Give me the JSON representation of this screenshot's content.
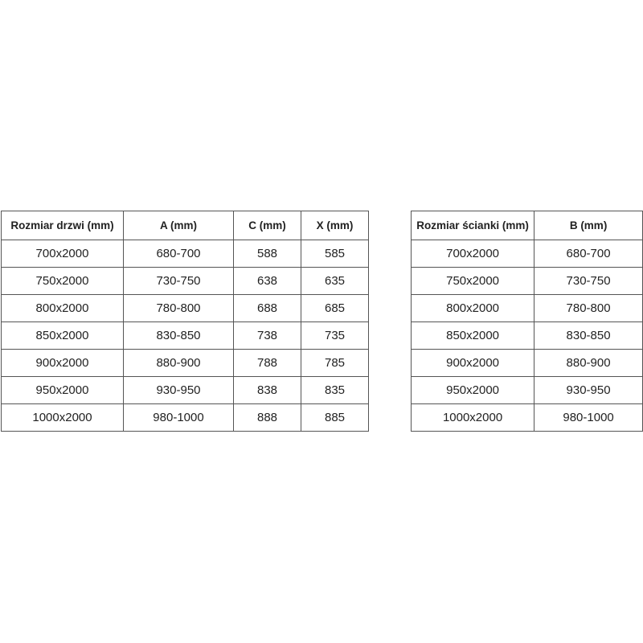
{
  "tables": [
    {
      "header": [
        "Rozmiar drzwi (mm)",
        "A (mm)",
        "C (mm)",
        "X (mm)"
      ],
      "rows": [
        [
          "700x2000",
          "680-700",
          "588",
          "585"
        ],
        [
          "750x2000",
          "730-750",
          "638",
          "635"
        ],
        [
          "800x2000",
          "780-800",
          "688",
          "685"
        ],
        [
          "850x2000",
          "830-850",
          "738",
          "735"
        ],
        [
          "900x2000",
          "880-900",
          "788",
          "785"
        ],
        [
          "950x2000",
          "930-950",
          "838",
          "835"
        ],
        [
          "1000x2000",
          "980-1000",
          "888",
          "885"
        ]
      ]
    },
    {
      "header": [
        "Rozmiar ścianki (mm)",
        "B (mm)"
      ],
      "rows": [
        [
          "700x2000",
          "680-700"
        ],
        [
          "750x2000",
          "730-750"
        ],
        [
          "800x2000",
          "780-800"
        ],
        [
          "850x2000",
          "830-850"
        ],
        [
          "900x2000",
          "880-900"
        ],
        [
          "950x2000",
          "930-950"
        ],
        [
          "1000x2000",
          "980-1000"
        ]
      ]
    }
  ]
}
